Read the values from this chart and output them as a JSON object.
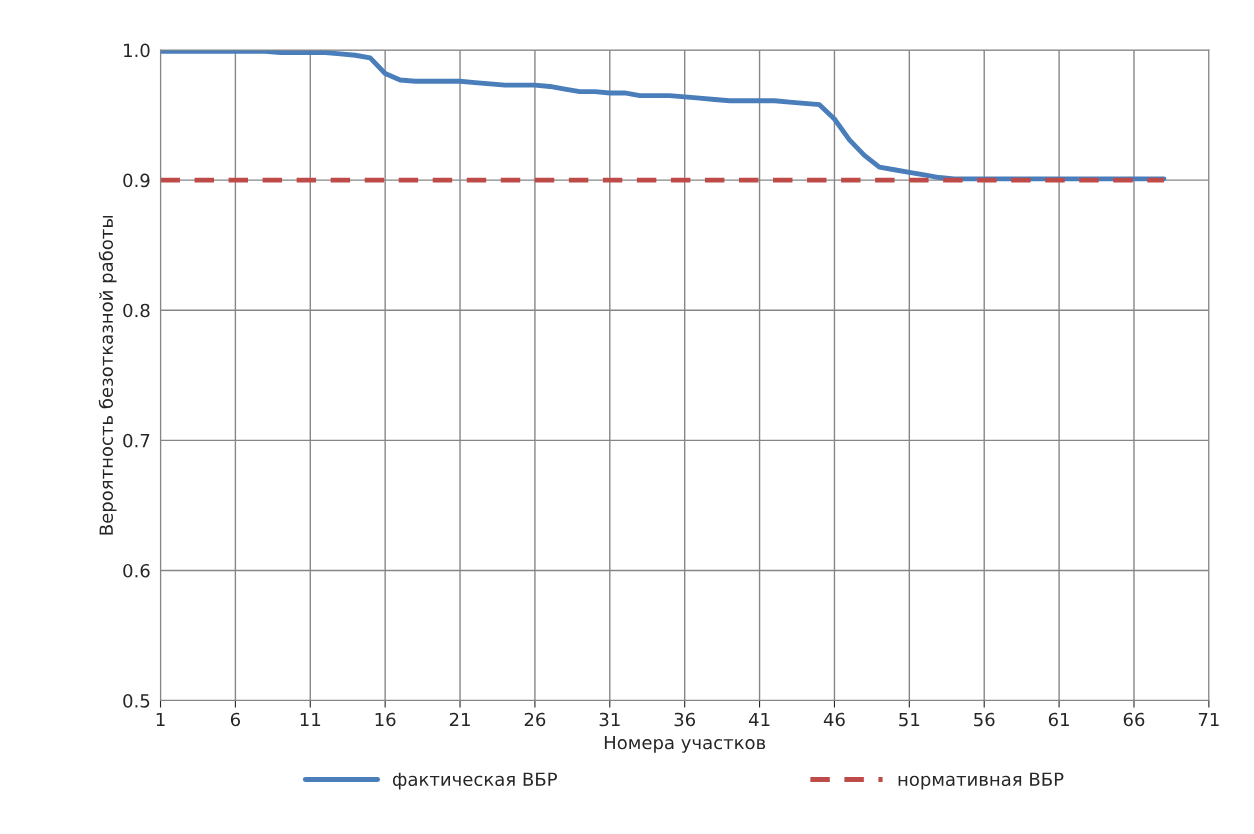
{
  "chart_data": {
    "type": "line",
    "xlabel": "Номера участков",
    "ylabel": "Вероятность безотказной работы",
    "xlim": [
      1,
      71
    ],
    "xticks": [
      1,
      6,
      11,
      16,
      21,
      26,
      31,
      36,
      41,
      46,
      51,
      56,
      61,
      66,
      71
    ],
    "ylim": [
      0.5,
      1.0
    ],
    "yticks": [
      {
        "value": 0.5,
        "label": "0.5"
      },
      {
        "value": 0.6,
        "label": "0.6"
      },
      {
        "value": 0.7,
        "label": "0.7"
      },
      {
        "value": 0.8,
        "label": "0.8"
      },
      {
        "value": 0.9,
        "label": "0.9"
      },
      {
        "value": 1.0,
        "label": "1.0"
      }
    ],
    "grid": true,
    "legend": "bottom",
    "series": [
      {
        "name": "фактическая ВБР",
        "color": "#4a7ebb",
        "line_style": "solid",
        "x": [
          1,
          2,
          3,
          4,
          5,
          6,
          7,
          8,
          9,
          10,
          11,
          12,
          13,
          14,
          15,
          16,
          17,
          18,
          19,
          20,
          21,
          22,
          23,
          24,
          25,
          26,
          27,
          28,
          29,
          30,
          31,
          32,
          33,
          34,
          35,
          36,
          37,
          38,
          39,
          40,
          41,
          42,
          43,
          44,
          45,
          46,
          47,
          48,
          49,
          50,
          51,
          52,
          53,
          54,
          55,
          56,
          57,
          58,
          59,
          60,
          61,
          62,
          63,
          64,
          65,
          66,
          67,
          68
        ],
        "values": [
          0.999,
          0.999,
          0.999,
          0.999,
          0.999,
          0.999,
          0.999,
          0.999,
          0.998,
          0.998,
          0.998,
          0.998,
          0.997,
          0.996,
          0.994,
          0.982,
          0.977,
          0.976,
          0.976,
          0.976,
          0.976,
          0.975,
          0.974,
          0.973,
          0.973,
          0.973,
          0.972,
          0.97,
          0.968,
          0.968,
          0.967,
          0.967,
          0.965,
          0.965,
          0.965,
          0.964,
          0.963,
          0.962,
          0.961,
          0.961,
          0.961,
          0.961,
          0.96,
          0.959,
          0.958,
          0.947,
          0.931,
          0.919,
          0.91,
          0.908,
          0.906,
          0.904,
          0.902,
          0.901,
          0.901,
          0.901,
          0.901,
          0.901,
          0.901,
          0.901,
          0.901,
          0.901,
          0.901,
          0.901,
          0.901,
          0.901,
          0.901,
          0.901
        ]
      },
      {
        "name": "нормативная ВБР",
        "color": "#be4b48",
        "line_style": "dashed",
        "x": [
          1,
          68
        ],
        "values": [
          0.9,
          0.9
        ]
      }
    ]
  }
}
